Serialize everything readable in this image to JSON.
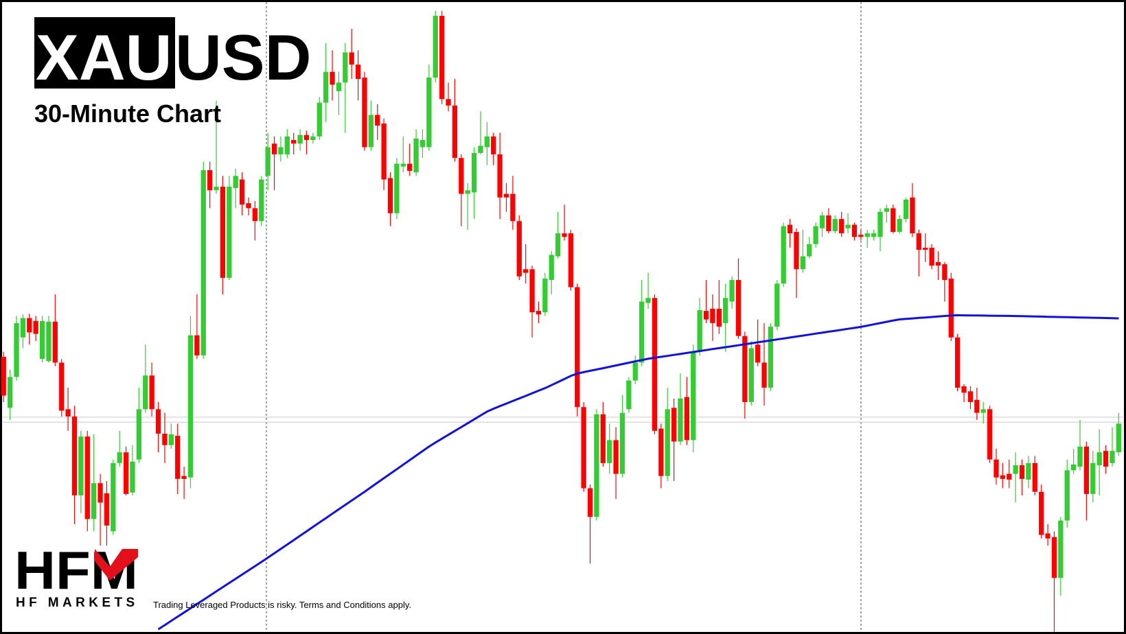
{
  "chart_data": {
    "type": "candlestick",
    "symbol_base": "XAU",
    "symbol_quote": "USD",
    "subtitle": "30-Minute Chart",
    "up_color": "#33cc33",
    "down_color": "#ff0000",
    "ma_color": "#1010e0",
    "level_color": "#c8c8c8",
    "ylim": [
      20,
      897
    ],
    "levels": [
      319,
      312
    ],
    "candles": [
      [
        403,
        410,
        340,
        349
      ],
      [
        332,
        385,
        315,
        375
      ],
      [
        375,
        460,
        370,
        450
      ],
      [
        430,
        462,
        415,
        457
      ],
      [
        457,
        463,
        420,
        437
      ],
      [
        453,
        460,
        425,
        435
      ],
      [
        400,
        460,
        395,
        453
      ],
      [
        397,
        460,
        395,
        452
      ],
      [
        452,
        490,
        390,
        395
      ],
      [
        395,
        400,
        320,
        328
      ],
      [
        330,
        360,
        300,
        320
      ],
      [
        320,
        335,
        170,
        210
      ],
      [
        210,
        300,
        185,
        292
      ],
      [
        292,
        300,
        160,
        177
      ],
      [
        177,
        295,
        160,
        227
      ],
      [
        227,
        240,
        140,
        200
      ],
      [
        213,
        230,
        140,
        168
      ],
      [
        160,
        260,
        155,
        255
      ],
      [
        255,
        300,
        250,
        270
      ],
      [
        270,
        278,
        210,
        212
      ],
      [
        214,
        280,
        210,
        257
      ],
      [
        260,
        360,
        255,
        330
      ],
      [
        330,
        420,
        325,
        377
      ],
      [
        377,
        395,
        320,
        330
      ],
      [
        330,
        340,
        270,
        296
      ],
      [
        296,
        325,
        255,
        280
      ],
      [
        280,
        310,
        275,
        295
      ],
      [
        293,
        310,
        212,
        233
      ],
      [
        237,
        250,
        205,
        233
      ],
      [
        235,
        460,
        220,
        433
      ],
      [
        433,
        490,
        400,
        405
      ],
      [
        405,
        675,
        400,
        663
      ],
      [
        663,
        675,
        610,
        635
      ],
      [
        635,
        760,
        630,
        640
      ],
      [
        640,
        655,
        490,
        513
      ],
      [
        513,
        655,
        510,
        640
      ],
      [
        638,
        665,
        610,
        655
      ],
      [
        650,
        660,
        600,
        615
      ],
      [
        617,
        625,
        600,
        610
      ],
      [
        610,
        620,
        565,
        592
      ],
      [
        592,
        655,
        585,
        650
      ],
      [
        655,
        715,
        635,
        695
      ],
      [
        700,
        710,
        635,
        685
      ],
      [
        685,
        710,
        675,
        695
      ],
      [
        685,
        720,
        680,
        710
      ],
      [
        705,
        715,
        685,
        700
      ],
      [
        700,
        720,
        690,
        712
      ],
      [
        712,
        718,
        685,
        705
      ],
      [
        705,
        715,
        700,
        710
      ],
      [
        710,
        765,
        705,
        757
      ],
      [
        757,
        840,
        730,
        800
      ],
      [
        800,
        830,
        760,
        782
      ],
      [
        773,
        800,
        740,
        785
      ],
      [
        785,
        840,
        715,
        827
      ],
      [
        827,
        860,
        790,
        810
      ],
      [
        810,
        830,
        760,
        790
      ],
      [
        792,
        800,
        690,
        695
      ],
      [
        695,
        760,
        690,
        740
      ],
      [
        740,
        755,
        705,
        725
      ],
      [
        728,
        735,
        635,
        650
      ],
      [
        652,
        660,
        585,
        603
      ],
      [
        603,
        680,
        595,
        672
      ],
      [
        668,
        710,
        660,
        672
      ],
      [
        672,
        700,
        655,
        662
      ],
      [
        660,
        720,
        655,
        707
      ],
      [
        695,
        720,
        680,
        705
      ],
      [
        695,
        810,
        690,
        792
      ],
      [
        792,
        885,
        785,
        878
      ],
      [
        878,
        885,
        755,
        762
      ],
      [
        762,
        785,
        745,
        753
      ],
      [
        753,
        790,
        675,
        680
      ],
      [
        680,
        685,
        585,
        630
      ],
      [
        630,
        645,
        580,
        635
      ],
      [
        632,
        695,
        595,
        687
      ],
      [
        687,
        745,
        685,
        697
      ],
      [
        695,
        730,
        670,
        710
      ],
      [
        710,
        715,
        670,
        685
      ],
      [
        685,
        715,
        595,
        625
      ],
      [
        630,
        645,
        605,
        625
      ],
      [
        630,
        655,
        580,
        592
      ],
      [
        592,
        600,
        510,
        515
      ],
      [
        525,
        560,
        505,
        520
      ],
      [
        525,
        530,
        430,
        465
      ],
      [
        467,
        480,
        450,
        462
      ],
      [
        465,
        520,
        460,
        512
      ],
      [
        510,
        550,
        490,
        545
      ],
      [
        543,
        605,
        540,
        575
      ],
      [
        575,
        615,
        565,
        570
      ],
      [
        575,
        580,
        495,
        500
      ],
      [
        500,
        505,
        320,
        333
      ],
      [
        333,
        340,
        215,
        220
      ],
      [
        220,
        225,
        115,
        180
      ],
      [
        180,
        330,
        175,
        323
      ],
      [
        323,
        340,
        250,
        255
      ],
      [
        255,
        310,
        240,
        287
      ],
      [
        287,
        305,
        205,
        240
      ],
      [
        240,
        350,
        235,
        325
      ],
      [
        330,
        375,
        325,
        370
      ],
      [
        370,
        405,
        365,
        395
      ],
      [
        395,
        510,
        390,
        480
      ],
      [
        478,
        520,
        470,
        485
      ],
      [
        485,
        490,
        295,
        300
      ],
      [
        303,
        310,
        220,
        237
      ],
      [
        237,
        360,
        230,
        330
      ],
      [
        332,
        345,
        230,
        285
      ],
      [
        285,
        380,
        280,
        345
      ],
      [
        347,
        375,
        280,
        287
      ],
      [
        287,
        420,
        270,
        410
      ],
      [
        410,
        485,
        405,
        468
      ],
      [
        467,
        510,
        450,
        455
      ],
      [
        470,
        490,
        425,
        450
      ],
      [
        470,
        510,
        435,
        445
      ],
      [
        450,
        505,
        410,
        485
      ],
      [
        480,
        515,
        470,
        510
      ],
      [
        510,
        540,
        428,
        432
      ],
      [
        432,
        438,
        317,
        340
      ],
      [
        340,
        425,
        335,
        415
      ],
      [
        420,
        455,
        390,
        395
      ],
      [
        395,
        450,
        335,
        360
      ],
      [
        360,
        450,
        355,
        445
      ],
      [
        445,
        510,
        440,
        505
      ],
      [
        505,
        590,
        500,
        585
      ],
      [
        587,
        595,
        555,
        575
      ],
      [
        577,
        582,
        485,
        525
      ],
      [
        525,
        580,
        520,
        543
      ],
      [
        543,
        570,
        540,
        560
      ],
      [
        560,
        590,
        555,
        585
      ],
      [
        582,
        605,
        570,
        600
      ],
      [
        600,
        610,
        575,
        578
      ],
      [
        578,
        600,
        575,
        595
      ],
      [
        595,
        605,
        570,
        575
      ],
      [
        582,
        603,
        575,
        587
      ],
      [
        587,
        590,
        565,
        570
      ],
      [
        573,
        580,
        565,
        570
      ],
      [
        570,
        580,
        555,
        575
      ],
      [
        570,
        580,
        565,
        575
      ],
      [
        570,
        610,
        550,
        605
      ],
      [
        605,
        615,
        590,
        610
      ],
      [
        610,
        615,
        575,
        577
      ],
      [
        577,
        600,
        575,
        595
      ],
      [
        595,
        625,
        590,
        622
      ],
      [
        625,
        645,
        570,
        575
      ],
      [
        575,
        580,
        515,
        552
      ],
      [
        555,
        575,
        535,
        552
      ],
      [
        555,
        560,
        525,
        530
      ],
      [
        535,
        550,
        510,
        530
      ],
      [
        532,
        535,
        480,
        510
      ],
      [
        512,
        520,
        425,
        430
      ],
      [
        430,
        435,
        355,
        360
      ],
      [
        362,
        365,
        340,
        353
      ],
      [
        355,
        362,
        330,
        340
      ],
      [
        343,
        360,
        315,
        325
      ],
      [
        325,
        340,
        310,
        330
      ],
      [
        330,
        335,
        255,
        260
      ],
      [
        260,
        275,
        225,
        235
      ],
      [
        238,
        255,
        220,
        233
      ],
      [
        240,
        260,
        220,
        232
      ],
      [
        240,
        270,
        200,
        252
      ],
      [
        252,
        260,
        210,
        233
      ],
      [
        232,
        265,
        220,
        255
      ],
      [
        255,
        265,
        210,
        215
      ],
      [
        215,
        225,
        150,
        155
      ],
      [
        157,
        170,
        140,
        150
      ],
      [
        152,
        160,
        20,
        95
      ],
      [
        95,
        180,
        70,
        175
      ],
      [
        175,
        260,
        165,
        245
      ],
      [
        245,
        275,
        240,
        253
      ],
      [
        250,
        315,
        245,
        278
      ],
      [
        278,
        285,
        175,
        212
      ],
      [
        212,
        272,
        200,
        255
      ],
      [
        252,
        302,
        210,
        270
      ],
      [
        272,
        280,
        240,
        250
      ],
      [
        255,
        305,
        250,
        272
      ],
      [
        270,
        325,
        265,
        310
      ]
    ],
    "ma_values": [
      null,
      null,
      null,
      null,
      null,
      null,
      null,
      null,
      null,
      null,
      null,
      null,
      null,
      null,
      null,
      null,
      null,
      null,
      null,
      null,
      null,
      null,
      null,
      null,
      23.5,
      29.3,
      35.2,
      41.1,
      46.9,
      52.8,
      58.7,
      64.5,
      70.4,
      76.3,
      82.1,
      88.0,
      93.9,
      99.7,
      105.6,
      111.5,
      117.3,
      123.2,
      129.3,
      135.4,
      141.6,
      147.7,
      153.8,
      159.9,
      166.1,
      172.2,
      178.3,
      184.5,
      190.6,
      196.7,
      202.8,
      208.9,
      215.1,
      221.4,
      227.7,
      234.0,
      240.2,
      246.5,
      252.8,
      259.1,
      265.4,
      271.7,
      277.9,
      283.6,
      289.0,
      294.4,
      299.7,
      305.1,
      310.5,
      315.9,
      321.3,
      326.7,
      330.7,
      334.3,
      337.9,
      341.5,
      345.0,
      348.6,
      352.2,
      355.8,
      359.4,
      363.6,
      367.8,
      372.1,
      376.4,
      379.7,
      381.6,
      383.5,
      385.4,
      387.2,
      389.1,
      391.0,
      392.9,
      394.8,
      396.7,
      398.5,
      400.3,
      401.7,
      403.0,
      404.3,
      405.7,
      407.0,
      408.4,
      409.7,
      411.1,
      412.4,
      413.8,
      415.1,
      416.4,
      417.8,
      419.1,
      420.5,
      421.8,
      423.2,
      424.5,
      425.9,
      427.2,
      428.5,
      429.9,
      431.2,
      432.6,
      433.9,
      435.3,
      436.6,
      438.0,
      439.3,
      440.6,
      442.0,
      443.3,
      444.7,
      446.4,
      448.2,
      450.0,
      451.8,
      453.6,
      455.1,
      455.8,
      456.5,
      457.2,
      457.8,
      458.5,
      459.2,
      459.9,
      460.5,
      461.0,
      460.8,
      460.7,
      460.6,
      460.5,
      460.3,
      460.2,
      460.1,
      460.0,
      459.8,
      459.6,
      459.4,
      459.2,
      459.0,
      458.8,
      458.6,
      458.4,
      458.2,
      458.0,
      457.8,
      457.6,
      457.4,
      457.2,
      457.0,
      456.8,
      456.6
    ]
  },
  "logo": {
    "mark": "HFM",
    "name": "HF MARKETS"
  },
  "disclaimer": "Trading Leveraged Products is risky. Terms and Conditions apply."
}
